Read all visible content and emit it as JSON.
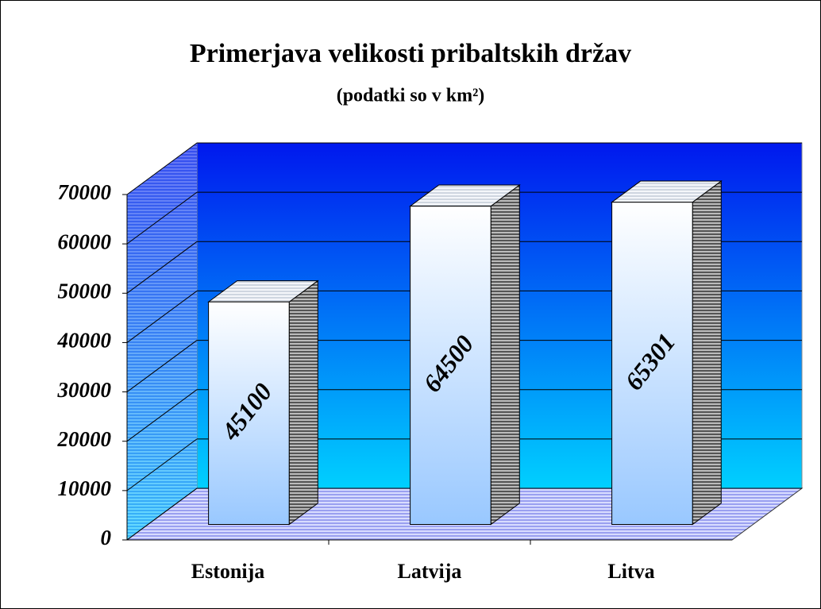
{
  "chart_data": {
    "type": "bar3d",
    "title": "Primerjava velikosti pribaltskih držav",
    "subtitle": "(podatki so v km²)",
    "categories": [
      "Estonija",
      "Latvija",
      "Litva"
    ],
    "values": [
      45100,
      64500,
      65301
    ],
    "ylim": [
      0,
      70000
    ],
    "yticks": [
      0,
      10000,
      20000,
      30000,
      40000,
      50000,
      60000,
      70000
    ],
    "grid": true
  }
}
